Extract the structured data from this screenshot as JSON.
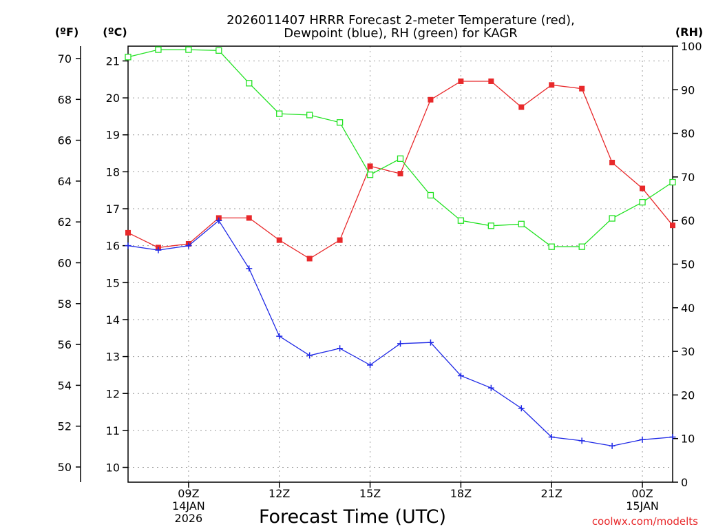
{
  "chart_data": {
    "type": "line",
    "title_line1": "2026011407 HRRR Forecast 2-meter Temperature (red),",
    "title_line2": "Dewpoint (blue), RH (green) for KAGR",
    "xlabel": "Forecast Time (UTC)",
    "credit": "coolwx.com/modelts",
    "units": {
      "fahrenheit": "(ºF)",
      "celsius": "(ºC)",
      "rh": "(RH)"
    },
    "x_hours": [
      7,
      8,
      9,
      10,
      11,
      12,
      13,
      14,
      15,
      16,
      17,
      18,
      19,
      20,
      21,
      22,
      23,
      24,
      25
    ],
    "xlim": [
      7,
      25
    ],
    "x_ticks": [
      {
        "hour": 9,
        "lines": [
          "09Z",
          "14JAN",
          "2026"
        ]
      },
      {
        "hour": 12,
        "lines": [
          "12Z"
        ]
      },
      {
        "hour": 15,
        "lines": [
          "15Z"
        ]
      },
      {
        "hour": 18,
        "lines": [
          "18Z"
        ]
      },
      {
        "hour": 21,
        "lines": [
          "21Z"
        ]
      },
      {
        "hour": 24,
        "lines": [
          "00Z",
          "15JAN"
        ]
      }
    ],
    "celsius_axis": {
      "ylim": [
        9.6,
        21.4
      ],
      "ticks": [
        "10",
        "11",
        "12",
        "13",
        "14",
        "15",
        "16",
        "17",
        "18",
        "19",
        "20",
        "21"
      ]
    },
    "fahrenheit_axis": {
      "ticks": [
        "50",
        "52",
        "54",
        "56",
        "58",
        "60",
        "62",
        "64",
        "66",
        "68",
        "70"
      ]
    },
    "rh_axis": {
      "ylim": [
        0,
        100
      ],
      "ticks": [
        "0",
        "10",
        "20",
        "30",
        "40",
        "50",
        "60",
        "70",
        "80",
        "90",
        "100"
      ]
    },
    "series": [
      {
        "name": "Temperature",
        "axis": "celsius",
        "color": "#e8282a",
        "marker": "filled-square",
        "values": [
          16.35,
          15.95,
          16.05,
          16.75,
          16.75,
          16.15,
          15.65,
          16.15,
          18.15,
          17.95,
          19.95,
          20.45,
          20.45,
          19.75,
          20.35,
          20.25,
          18.25,
          17.55,
          16.55
        ]
      },
      {
        "name": "Dewpoint",
        "axis": "celsius",
        "color": "#1e28e6",
        "marker": "plus",
        "values": [
          16.0,
          15.88,
          16.0,
          16.68,
          15.38,
          13.55,
          13.03,
          13.22,
          12.77,
          13.35,
          13.38,
          12.48,
          12.15,
          11.6,
          10.82,
          10.72,
          10.58,
          10.75,
          10.82
        ]
      },
      {
        "name": "RH",
        "axis": "rh",
        "color": "#22e222",
        "marker": "open-square",
        "values": [
          97.5,
          99.2,
          99.2,
          99.0,
          91.5,
          84.5,
          84.2,
          82.5,
          70.5,
          74.2,
          65.8,
          60.0,
          58.8,
          59.2,
          54.0,
          54.0,
          60.5,
          64.2,
          68.8
        ]
      }
    ]
  }
}
